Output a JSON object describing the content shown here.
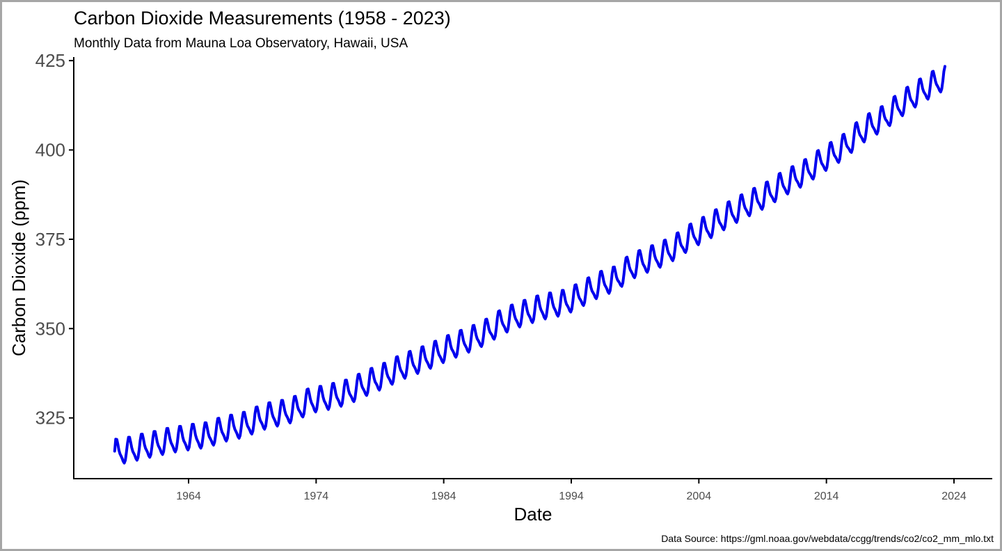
{
  "chart_data": {
    "type": "line",
    "title": "Carbon Dioxide Measurements (1958 - 2023)",
    "subtitle": "Monthly Data from Mauna Loa Observatory, Hawaii, USA",
    "xlabel": "Date",
    "ylabel": "Carbon Dioxide (ppm)",
    "caption": "Data Source: https://gml.noaa.gov/webdata/ccgg/trends/co2/co2_mm_mlo.txt",
    "x_range": [
      "1955-01-01",
      "2027-01-01"
    ],
    "ylim": [
      308,
      426
    ],
    "x_ticks": [
      "1964",
      "1974",
      "1984",
      "1994",
      "2004",
      "2014",
      "2024"
    ],
    "y_ticks": [
      325,
      350,
      375,
      400,
      425
    ],
    "grid": false,
    "legend": "none",
    "colors": {
      "line": "#0000ee"
    },
    "series": [
      {
        "frequency": "monthly",
        "start": "1958-03",
        "end": "2023-04",
        "annual_mean": {
          "1958": 315.3,
          "1959": 316.0,
          "1960": 316.9,
          "1961": 317.6,
          "1962": 318.5,
          "1963": 319.0,
          "1964": 319.6,
          "1965": 320.0,
          "1966": 321.4,
          "1967": 322.2,
          "1968": 323.0,
          "1969": 324.6,
          "1970": 325.7,
          "1971": 326.3,
          "1972": 327.5,
          "1973": 329.7,
          "1974": 330.2,
          "1975": 331.1,
          "1976": 332.0,
          "1977": 333.8,
          "1978": 335.4,
          "1979": 336.8,
          "1980": 338.7,
          "1981": 340.1,
          "1982": 341.4,
          "1983": 343.0,
          "1984": 344.6,
          "1985": 346.0,
          "1986": 347.4,
          "1987": 349.2,
          "1988": 351.6,
          "1989": 353.1,
          "1990": 354.4,
          "1991": 355.6,
          "1992": 356.4,
          "1993": 357.1,
          "1994": 358.8,
          "1995": 360.8,
          "1996": 362.6,
          "1997": 363.7,
          "1998": 366.7,
          "1999": 368.4,
          "2000": 369.7,
          "2001": 371.3,
          "2002": 373.4,
          "2003": 375.9,
          "2004": 377.7,
          "2005": 379.9,
          "2006": 382.1,
          "2007": 384.0,
          "2008": 385.8,
          "2009": 387.6,
          "2010": 390.1,
          "2011": 391.9,
          "2012": 393.9,
          "2013": 396.5,
          "2014": 398.7,
          "2015": 401.0,
          "2016": 404.4,
          "2017": 406.8,
          "2018": 408.7,
          "2019": 411.7,
          "2020": 414.2,
          "2021": 416.5,
          "2022": 418.6,
          "2023": 420.5
        },
        "seasonal_amplitude": 3.2,
        "seasonal_peak_month": "May",
        "first_value": 315.7,
        "last_value": 423.4
      }
    ]
  }
}
